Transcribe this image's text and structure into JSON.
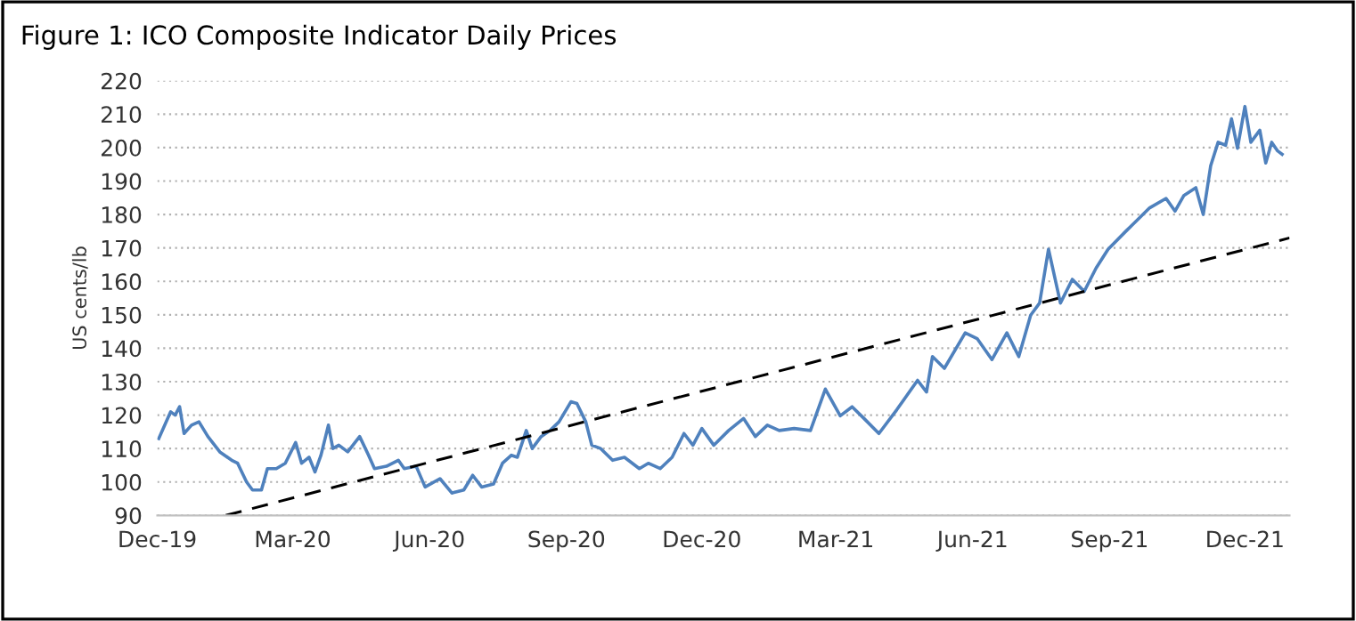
{
  "chart_data": {
    "type": "line",
    "title": "Figure 1: ICO Composite Indicator Daily Prices",
    "ylabel": "US cents/lb",
    "xlim": [
      "2019-12-01",
      "2021-12-31"
    ],
    "xticks": [
      {
        "value": "2019-12-01",
        "label": "Dec-19"
      },
      {
        "value": "2020-03-01",
        "label": "Mar-20"
      },
      {
        "value": "2020-06-01",
        "label": "Jun-20"
      },
      {
        "value": "2020-09-01",
        "label": "Sep-20"
      },
      {
        "value": "2020-12-01",
        "label": "Dec-20"
      },
      {
        "value": "2021-03-01",
        "label": "Mar-21"
      },
      {
        "value": "2021-06-01",
        "label": "Jun-21"
      },
      {
        "value": "2021-09-01",
        "label": "Sep-21"
      },
      {
        "value": "2021-12-01",
        "label": "Dec-21"
      }
    ],
    "ylim": [
      90,
      220
    ],
    "yticks": [
      90,
      100,
      110,
      120,
      130,
      140,
      150,
      160,
      170,
      180,
      190,
      200,
      210,
      220
    ],
    "grid": "y",
    "legend": false,
    "marker": "none",
    "series": [
      {
        "color": "#4f81bd",
        "line_style": "solid",
        "x": [
          "2019-12-02",
          "2019-12-07",
          "2019-12-10",
          "2019-12-13",
          "2019-12-16",
          "2019-12-19",
          "2019-12-24",
          "2019-12-29",
          "2020-01-04",
          "2020-01-12",
          "2020-01-20",
          "2020-01-24",
          "2020-01-30",
          "2020-02-03",
          "2020-02-09",
          "2020-02-13",
          "2020-02-19",
          "2020-02-25",
          "2020-03-03",
          "2020-03-07",
          "2020-03-12",
          "2020-03-16",
          "2020-03-20",
          "2020-03-25",
          "2020-03-28",
          "2020-04-01",
          "2020-04-07",
          "2020-04-15",
          "2020-04-21",
          "2020-04-25",
          "2020-05-03",
          "2020-05-11",
          "2020-05-15",
          "2020-05-23",
          "2020-05-29",
          "2020-06-08",
          "2020-06-16",
          "2020-06-24",
          "2020-06-30",
          "2020-07-06",
          "2020-07-14",
          "2020-07-20",
          "2020-07-26",
          "2020-07-30",
          "2020-08-05",
          "2020-08-09",
          "2020-08-15",
          "2020-08-21",
          "2020-08-27",
          "2020-09-04",
          "2020-09-08",
          "2020-09-14",
          "2020-09-18",
          "2020-09-24",
          "2020-10-02",
          "2020-10-10",
          "2020-10-20",
          "2020-10-26",
          "2020-11-03",
          "2020-11-11",
          "2020-11-19",
          "2020-11-25",
          "2020-12-01",
          "2020-12-09",
          "2020-12-19",
          "2020-12-29",
          "2021-01-06",
          "2021-01-14",
          "2021-01-22",
          "2021-02-01",
          "2021-02-12",
          "2021-02-22",
          "2021-03-04",
          "2021-03-12",
          "2021-03-20",
          "2021-03-30",
          "2021-04-11",
          "2021-04-25",
          "2021-05-01",
          "2021-05-05",
          "2021-05-13",
          "2021-05-27",
          "2021-06-04",
          "2021-06-14",
          "2021-06-24",
          "2021-07-02",
          "2021-07-10",
          "2021-07-16",
          "2021-07-22",
          "2021-07-30",
          "2021-08-07",
          "2021-08-15",
          "2021-08-23",
          "2021-08-31",
          "2021-09-12",
          "2021-09-28",
          "2021-10-09",
          "2021-10-15",
          "2021-10-21",
          "2021-10-29",
          "2021-11-03",
          "2021-11-08",
          "2021-11-13",
          "2021-11-18",
          "2021-11-22",
          "2021-11-26",
          "2021-12-01",
          "2021-12-05",
          "2021-12-11",
          "2021-12-15",
          "2021-12-19",
          "2021-12-23",
          "2021-12-26"
        ],
        "values": [
          113,
          118,
          121,
          120,
          122.5,
          114.5,
          117,
          118,
          113.6,
          109,
          106.5,
          105.6,
          100,
          97.6,
          97.6,
          104,
          104,
          105.6,
          111.8,
          105.6,
          107.4,
          103,
          108,
          117,
          110,
          111,
          109,
          113.6,
          108,
          104,
          104.7,
          106.5,
          104,
          104.7,
          98.5,
          101,
          96.7,
          97.6,
          102,
          98.5,
          99.4,
          105.6,
          108,
          107.4,
          115.4,
          110,
          113.6,
          115.4,
          118,
          124,
          123.5,
          118,
          111,
          110,
          106.5,
          107.4,
          104,
          105.6,
          104,
          107.4,
          114.5,
          111,
          116,
          111,
          115.4,
          119,
          113.6,
          117,
          115.4,
          116,
          115.4,
          127.8,
          119.8,
          122.5,
          119,
          114.5,
          121.6,
          130.4,
          126.9,
          137.5,
          134,
          144.6,
          142.9,
          136.6,
          144.6,
          137.5,
          149.9,
          153.5,
          169.6,
          153.5,
          160.6,
          157,
          164,
          169.6,
          175,
          182,
          184.8,
          181,
          185.7,
          188,
          180,
          194.6,
          201.6,
          200.7,
          208.6,
          199.8,
          212.3,
          201.6,
          205.2,
          195.4,
          201.6,
          199,
          198
        ]
      },
      {
        "color": "#000000",
        "line_style": "dashed",
        "x": [
          "2020-01-16",
          "2021-12-31"
        ],
        "values": [
          90,
          173
        ]
      }
    ]
  }
}
